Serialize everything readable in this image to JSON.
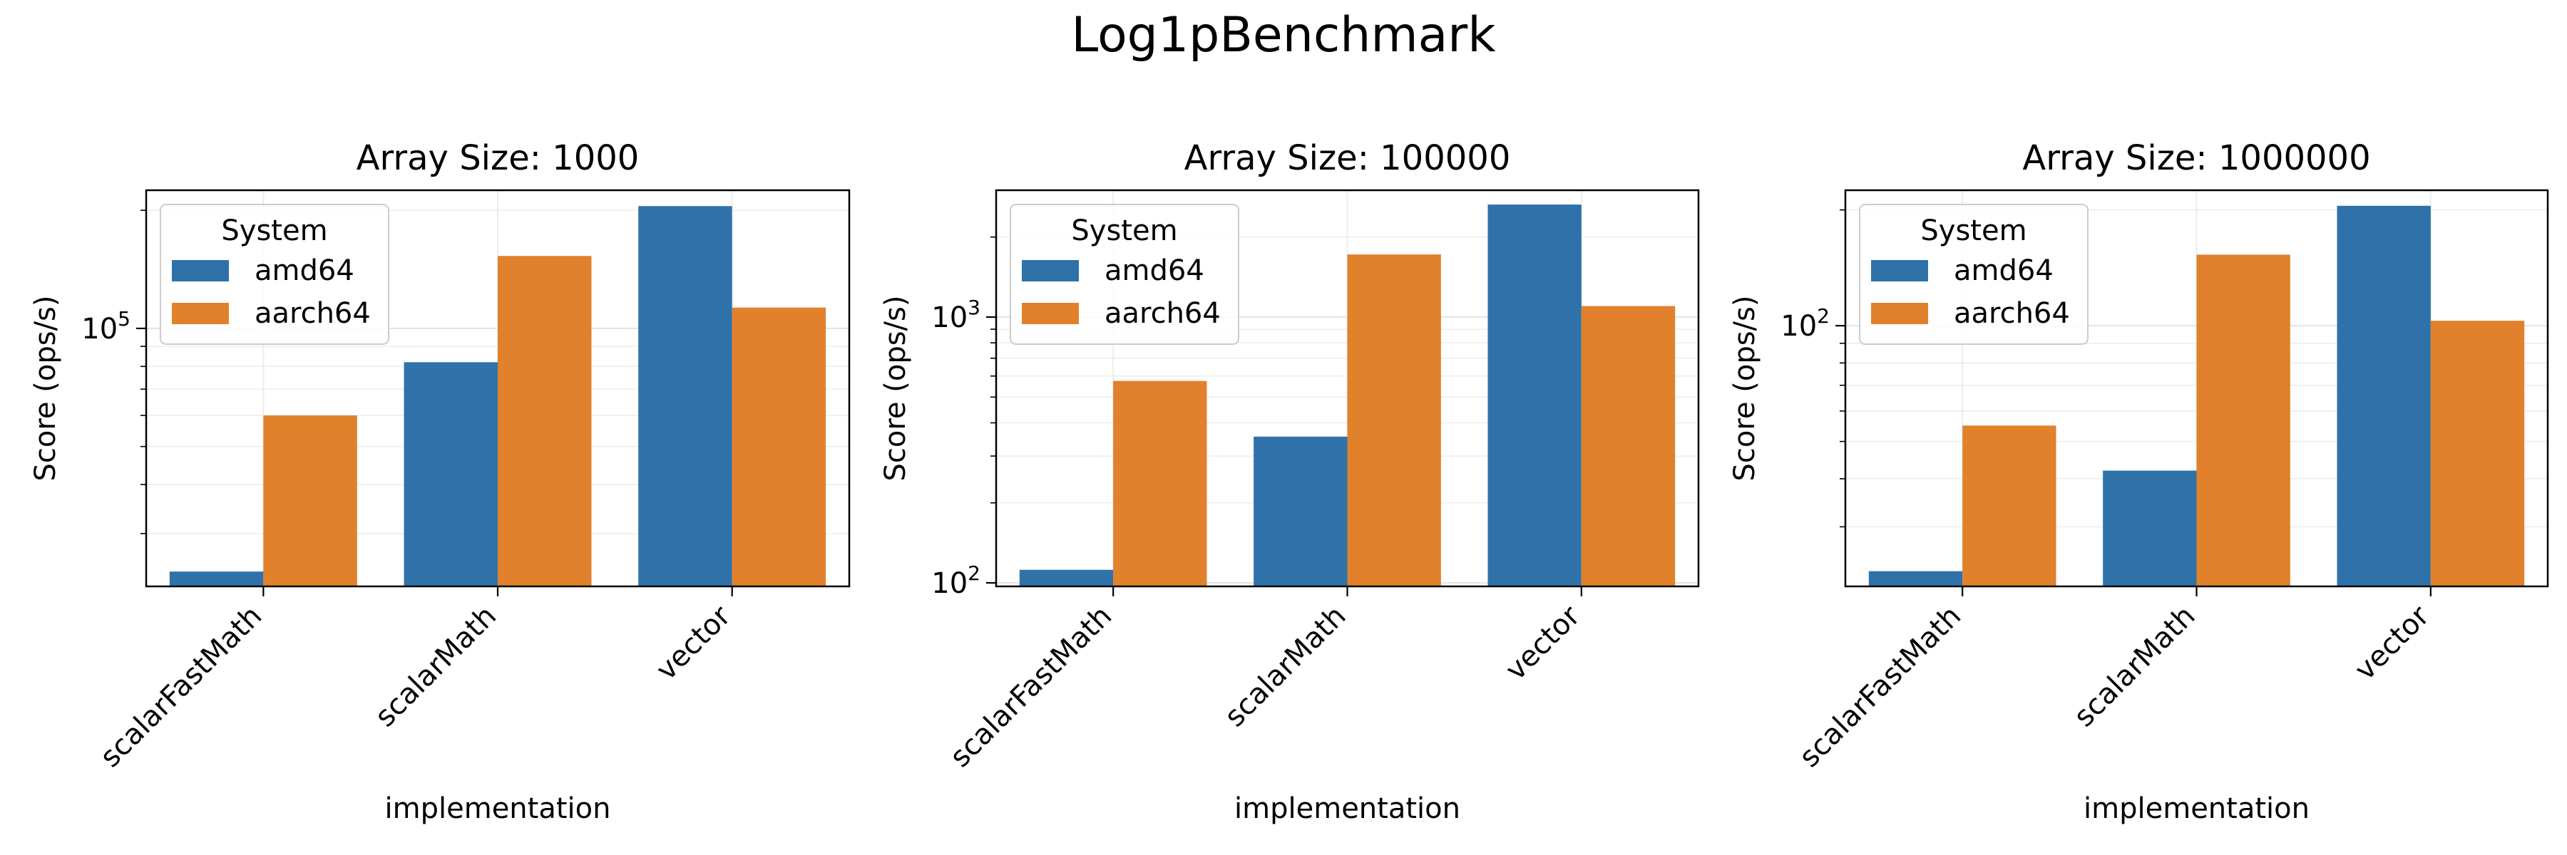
{
  "title": "Log1pBenchmark",
  "colors": {
    "amd64": "#2f72aa",
    "aarch64": "#e1812c"
  },
  "chart_data": [
    {
      "type": "bar",
      "title": "Array Size: 1000",
      "xlabel": "implementation",
      "ylabel": "Score (ops/s)",
      "yscale": "log",
      "ylim": [
        22000,
        225000
      ],
      "yticks": [
        {
          "value": 100000,
          "base": "10",
          "exp": "5"
        }
      ],
      "categories": [
        "scalarFastMath",
        "scalarMath",
        "vector"
      ],
      "series": [
        {
          "name": "amd64",
          "values": [
            24000,
            82000,
            205000
          ]
        },
        {
          "name": "aarch64",
          "values": [
            60000,
            153000,
            113000
          ]
        }
      ],
      "legend": {
        "title": "System",
        "position": "upper-left"
      },
      "grid": true
    },
    {
      "type": "bar",
      "title": "Array Size: 100000",
      "xlabel": "implementation",
      "ylabel": "Score (ops/s)",
      "yscale": "log",
      "ylim": [
        97,
        3000
      ],
      "yticks": [
        {
          "value": 100,
          "base": "10",
          "exp": "2"
        },
        {
          "value": 1000,
          "base": "10",
          "exp": "3"
        }
      ],
      "categories": [
        "scalarFastMath",
        "scalarMath",
        "vector"
      ],
      "series": [
        {
          "name": "amd64",
          "values": [
            112,
            355,
            2650
          ]
        },
        {
          "name": "aarch64",
          "values": [
            575,
            1720,
            1100
          ]
        }
      ],
      "legend": {
        "title": "System",
        "position": "upper-left"
      },
      "grid": true
    },
    {
      "type": "bar",
      "title": "Array Size: 1000000",
      "xlabel": "implementation",
      "ylabel": "Score (ops/s)",
      "yscale": "log",
      "ylim": [
        21,
        225
      ],
      "yticks": [
        {
          "value": 100,
          "base": "10",
          "exp": "2"
        }
      ],
      "categories": [
        "scalarFastMath",
        "scalarMath",
        "vector"
      ],
      "series": [
        {
          "name": "amd64",
          "values": [
            23,
            42,
            205
          ]
        },
        {
          "name": "aarch64",
          "values": [
            55,
            153,
            103
          ]
        }
      ],
      "legend": {
        "title": "System",
        "position": "upper-left"
      },
      "grid": true
    }
  ]
}
